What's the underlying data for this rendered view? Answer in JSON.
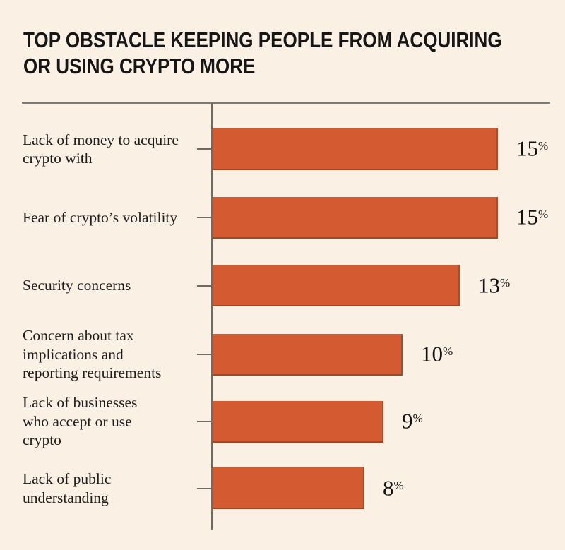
{
  "header": {
    "title_lines": [
      "TOP OBSTACLE KEEPING PEOPLE FROM ACQUIRING",
      "OR USING CRYPTO MORE"
    ]
  },
  "chart_data": {
    "type": "bar",
    "orientation": "horizontal",
    "title": "TOP OBSTACLE KEEPING PEOPLE FROM ACQUIRING OR USING CRYPTO MORE",
    "categories": [
      "Lack of money to acquire crypto with",
      "Fear of crypto’s volatility",
      "Security concerns",
      "Concern about tax implications and reporting requirements",
      "Lack of businesses who accept or use crypto",
      "Lack of public understanding"
    ],
    "values": [
      15,
      15,
      13,
      10,
      9,
      8
    ],
    "unit": "%",
    "xlabel": "",
    "ylabel": "",
    "xlim": [
      0,
      16
    ],
    "grid": false,
    "legend": false,
    "value_labels_shown": true,
    "rows": [
      {
        "lines": [
          "Lack of money to acquire",
          "crypto with"
        ]
      },
      {
        "lines": [
          "Fear of crypto’s volatility"
        ]
      },
      {
        "lines": [
          "Security concerns"
        ]
      },
      {
        "lines": [
          "Concern about tax",
          "implications and",
          "reporting requirements"
        ]
      },
      {
        "lines": [
          "Lack of businesses",
          "who accept or use",
          "crypto"
        ]
      },
      {
        "lines": [
          "Lack of public",
          "understanding"
        ]
      }
    ],
    "colors": {
      "background": "#fbf0e4",
      "bar": "#d35a31",
      "bar_edge": "#a8441f",
      "axis": "#6f6c66",
      "text": "#1d1d1d"
    }
  }
}
